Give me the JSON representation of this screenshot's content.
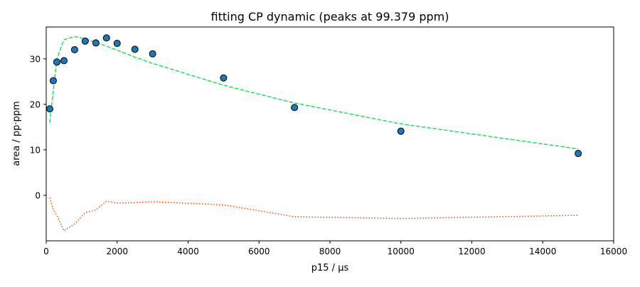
{
  "chart_data": {
    "type": "scatter",
    "title": "fitting CP dynamic (peaks at 99.379 ppm)",
    "xlabel": "p15 / µs",
    "ylabel": "area / pp·ppm",
    "xlim": [
      0,
      16000
    ],
    "ylim": [
      -10,
      37
    ],
    "xticks": [
      0,
      2000,
      4000,
      6000,
      8000,
      10000,
      12000,
      14000,
      16000
    ],
    "yticks": [
      0,
      10,
      20,
      30
    ],
    "grid": false,
    "legend": "none",
    "series": [
      {
        "kind": "points",
        "color": "#1f77b4",
        "x": [
          100,
          200,
          300,
          500,
          800,
          1100,
          1400,
          1700,
          2000,
          2500,
          3000,
          5000,
          7000,
          10000,
          15000
        ],
        "y": [
          19.0,
          25.2,
          29.3,
          29.6,
          32.0,
          33.9,
          33.5,
          34.6,
          33.4,
          32.1,
          31.1,
          25.8,
          19.3,
          14.1,
          9.2
        ]
      },
      {
        "kind": "fit",
        "style": "dashed",
        "color": "#22e055",
        "x": [
          100,
          200,
          300,
          500,
          800,
          1100,
          1400,
          1700,
          2000,
          2500,
          3000,
          5000,
          7000,
          10000,
          15000
        ],
        "y": [
          16.0,
          23.0,
          30.0,
          34.2,
          34.9,
          34.4,
          33.6,
          32.8,
          31.9,
          30.4,
          29.0,
          24.2,
          20.3,
          15.7,
          10.2
        ]
      },
      {
        "kind": "residual",
        "style": "dotted",
        "color": "#ff4500",
        "x": [
          100,
          200,
          300,
          500,
          800,
          1100,
          1400,
          1700,
          2000,
          2500,
          3000,
          5000,
          7000,
          10000,
          15000
        ],
        "y": [
          -0.5,
          -3.2,
          -4.4,
          -7.8,
          -6.3,
          -3.8,
          -3.2,
          -1.3,
          -1.7,
          -1.6,
          -1.4,
          -2.1,
          -4.7,
          -5.1,
          -4.4
        ]
      }
    ]
  }
}
